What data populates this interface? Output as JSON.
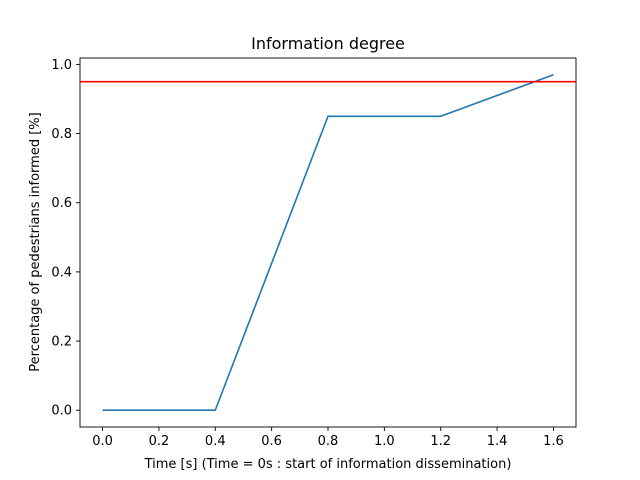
{
  "chart_data": {
    "type": "line",
    "title": "Information degree",
    "xlabel": "Time [s] (Time = 0s : start of information dissemination)",
    "ylabel": "Percentage of pedestrians informed [%]",
    "xlim": [
      -0.08,
      1.68
    ],
    "ylim": [
      -0.0485,
      1.0185
    ],
    "xticks": [
      0.0,
      0.2,
      0.4,
      0.6,
      0.8,
      1.0,
      1.2,
      1.4,
      1.6
    ],
    "xtick_labels": [
      "0.0",
      "0.2",
      "0.4",
      "0.6",
      "0.8",
      "1.0",
      "1.2",
      "1.4",
      "1.6"
    ],
    "yticks": [
      0.0,
      0.2,
      0.4,
      0.6,
      0.8,
      1.0
    ],
    "ytick_labels": [
      "0.0",
      "0.2",
      "0.4",
      "0.6",
      "0.8",
      "1.0"
    ],
    "grid": false,
    "series": [
      {
        "color": "#1f77b4",
        "x": [
          0.0,
          0.4,
          0.8,
          1.2,
          1.6
        ],
        "y": [
          0.0,
          0.0,
          0.85,
          0.85,
          0.97
        ]
      }
    ],
    "hlines": [
      {
        "y": 0.95,
        "color": "#ff0000"
      }
    ]
  }
}
